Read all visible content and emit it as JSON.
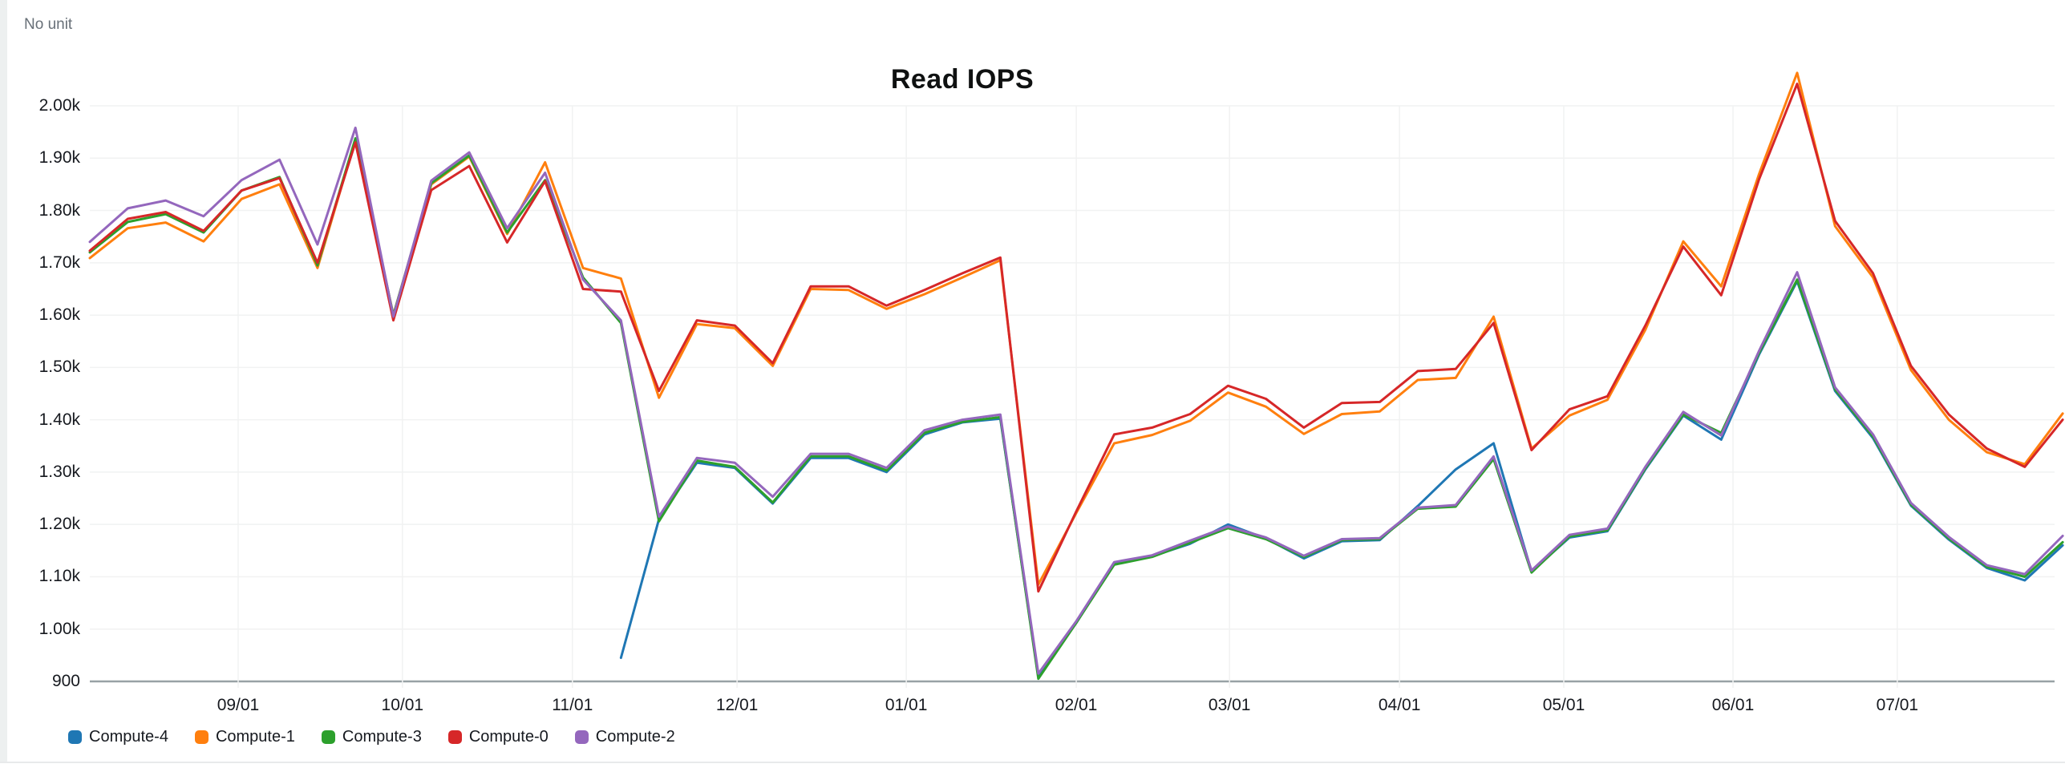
{
  "panel": {
    "unit_label": "No unit"
  },
  "chart_data": {
    "type": "line",
    "title": "Read IOPS",
    "unit": "No unit",
    "grid": true,
    "legend_position": "bottom-left",
    "ylim": [
      900,
      2000
    ],
    "y_ticks": [
      {
        "label": "2.00k",
        "value": 2000
      },
      {
        "label": "1.90k",
        "value": 1900
      },
      {
        "label": "1.80k",
        "value": 1800
      },
      {
        "label": "1.70k",
        "value": 1700
      },
      {
        "label": "1.60k",
        "value": 1600
      },
      {
        "label": "1.50k",
        "value": 1500
      },
      {
        "label": "1.40k",
        "value": 1400
      },
      {
        "label": "1.30k",
        "value": 1300
      },
      {
        "label": "1.20k",
        "value": 1200
      },
      {
        "label": "1.10k",
        "value": 1100
      },
      {
        "label": "1.00k",
        "value": 1000
      },
      {
        "label": "900",
        "value": 900
      }
    ],
    "x_ticks": [
      {
        "label": "09/01",
        "index": 3.91
      },
      {
        "label": "10/01",
        "index": 8.24
      },
      {
        "label": "11/01",
        "index": 12.72
      },
      {
        "label": "12/01",
        "index": 17.06
      },
      {
        "label": "01/01",
        "index": 21.52
      },
      {
        "label": "02/01",
        "index": 26.0
      },
      {
        "label": "03/01",
        "index": 30.04
      },
      {
        "label": "04/01",
        "index": 34.52
      },
      {
        "label": "05/01",
        "index": 38.85
      },
      {
        "label": "06/01",
        "index": 43.31
      },
      {
        "label": "07/01",
        "index": 47.64
      }
    ],
    "series": [
      {
        "name": "Compute-4",
        "color": "#1f77b4",
        "values": [
          null,
          null,
          null,
          null,
          null,
          null,
          null,
          null,
          null,
          null,
          null,
          null,
          null,
          null,
          945,
          1210,
          1318,
          1308,
          1240,
          1327,
          1327,
          1300,
          1372,
          1395,
          1402,
          910,
          1012,
          1126,
          1139,
          1163,
          1200,
          1173,
          1135,
          1168,
          1170,
          1235,
          1305,
          1355,
          1110,
          1175,
          1187,
          1305,
          1408,
          1362,
          1525,
          1665,
          1455,
          1365,
          1236,
          1171,
          1117,
          1093,
          1160
        ]
      },
      {
        "name": "Compute-1",
        "color": "#ff7f0e",
        "values": [
          1709,
          1766,
          1777,
          1741,
          1822,
          1850,
          1690,
          1935,
          1600,
          1850,
          1903,
          1755,
          1892,
          1690,
          1670,
          1442,
          1583,
          1575,
          1503,
          1650,
          1648,
          1612,
          1640,
          1672,
          1705,
          1085,
          1222,
          1355,
          1371,
          1398,
          1452,
          1425,
          1373,
          1411,
          1416,
          1476,
          1480,
          1597,
          1345,
          1408,
          1438,
          1572,
          1741,
          1655,
          1870,
          2063,
          1770,
          1672,
          1495,
          1400,
          1338,
          1315,
          1412
        ]
      },
      {
        "name": "Compute-3",
        "color": "#2ca02c",
        "values": [
          1720,
          1778,
          1793,
          1758,
          1838,
          1864,
          1695,
          1938,
          1600,
          1852,
          1905,
          1758,
          1858,
          1672,
          1585,
          1206,
          1322,
          1310,
          1242,
          1330,
          1330,
          1303,
          1375,
          1396,
          1405,
          905,
          1012,
          1123,
          1138,
          1165,
          1193,
          1172,
          1138,
          1170,
          1172,
          1230,
          1234,
          1325,
          1108,
          1177,
          1189,
          1307,
          1410,
          1375,
          1528,
          1668,
          1458,
          1368,
          1238,
          1173,
          1119,
          1100,
          1166
        ]
      },
      {
        "name": "Compute-0",
        "color": "#d62728",
        "values": [
          1723,
          1784,
          1797,
          1761,
          1838,
          1862,
          1700,
          1930,
          1590,
          1839,
          1885,
          1739,
          1856,
          1650,
          1645,
          1455,
          1590,
          1580,
          1508,
          1655,
          1655,
          1618,
          1648,
          1680,
          1710,
          1072,
          1225,
          1372,
          1385,
          1411,
          1465,
          1440,
          1385,
          1432,
          1434,
          1493,
          1497,
          1585,
          1342,
          1420,
          1445,
          1580,
          1731,
          1638,
          1860,
          2042,
          1780,
          1680,
          1503,
          1410,
          1345,
          1310,
          1400
        ]
      },
      {
        "name": "Compute-2",
        "color": "#9467bd",
        "values": [
          1740,
          1804,
          1819,
          1789,
          1858,
          1897,
          1735,
          1958,
          1597,
          1857,
          1911,
          1766,
          1872,
          1668,
          1590,
          1215,
          1327,
          1318,
          1253,
          1335,
          1335,
          1308,
          1380,
          1400,
          1410,
          915,
          1015,
          1128,
          1141,
          1169,
          1196,
          1175,
          1140,
          1172,
          1174,
          1232,
          1237,
          1330,
          1112,
          1180,
          1192,
          1310,
          1415,
          1370,
          1532,
          1682,
          1462,
          1372,
          1241,
          1176,
          1122,
          1105,
          1178
        ]
      }
    ]
  }
}
